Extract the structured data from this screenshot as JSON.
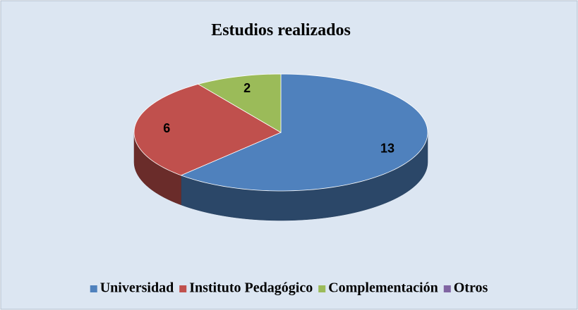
{
  "chart_data": {
    "type": "pie3d",
    "title": "Estudios realizados",
    "categories": [
      "Universidad",
      "Instituto Pedagógico",
      "Complementación",
      "Otros"
    ],
    "values": [
      13,
      6,
      2,
      0
    ],
    "colors": [
      "#4f81bd",
      "#c0504d",
      "#9bbb59",
      "#8064a2"
    ],
    "legend": "bottom"
  }
}
